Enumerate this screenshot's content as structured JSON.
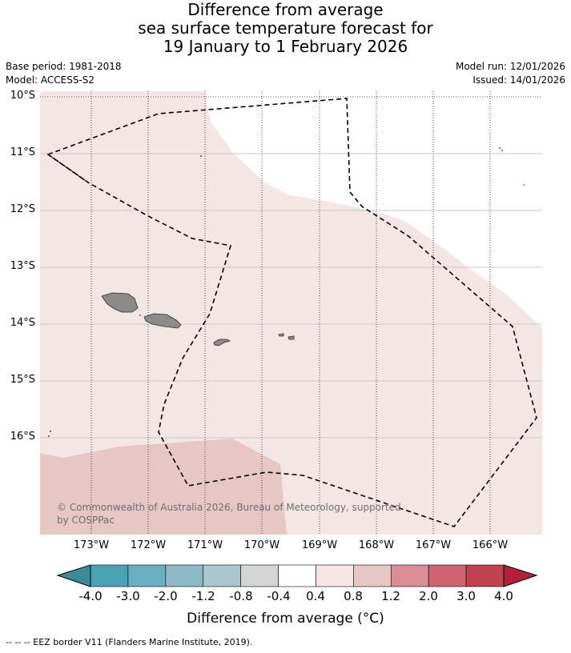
{
  "title": {
    "line1": "Difference from average",
    "line2": "sea surface temperature forecast for",
    "line3": "19 January to 1 February 2026"
  },
  "meta": {
    "base_period": "Base period: 1981-2018",
    "model": "Model: ACCESS-S2",
    "model_run": "Model run: 12/01/2026",
    "issued": "Issued: 14/01/2026"
  },
  "map": {
    "lat_labels": [
      "10°S",
      "11°S",
      "12°S",
      "13°S",
      "14°S",
      "15°S",
      "16°S"
    ],
    "lon_labels": [
      "173°W",
      "172°W",
      "171°W",
      "170°W",
      "169°W",
      "168°W",
      "167°W",
      "166°W"
    ],
    "copyright_line1": "© Commonwealth of Australia 2026, Bureau of Meteorology, supported",
    "copyright_line2": "by COSPPac",
    "land_color": "#8f8a89",
    "fill_light": "#f4e6e5",
    "fill_medium": "#e6c7c3"
  },
  "colorbar": {
    "label": "Difference from average (°C)",
    "ticks": [
      "-4.0",
      "-3.0",
      "-2.0",
      "-1.2",
      "-0.8",
      "-0.4",
      "0.4",
      "0.8",
      "1.2",
      "2.0",
      "3.0",
      "4.0"
    ],
    "colors": [
      "#3d8a9a",
      "#4aa3b5",
      "#6aafc0",
      "#8bbac6",
      "#a9c7cc",
      "#d4d6d6",
      "#ffffff",
      "#f4e6e5",
      "#e6c7c3",
      "#d98e96",
      "#cf6472",
      "#c0424f",
      "#b51f3a"
    ]
  },
  "footnote": "-- -- -- EEZ border V11 (Flanders Marine Institute, 2019)."
}
